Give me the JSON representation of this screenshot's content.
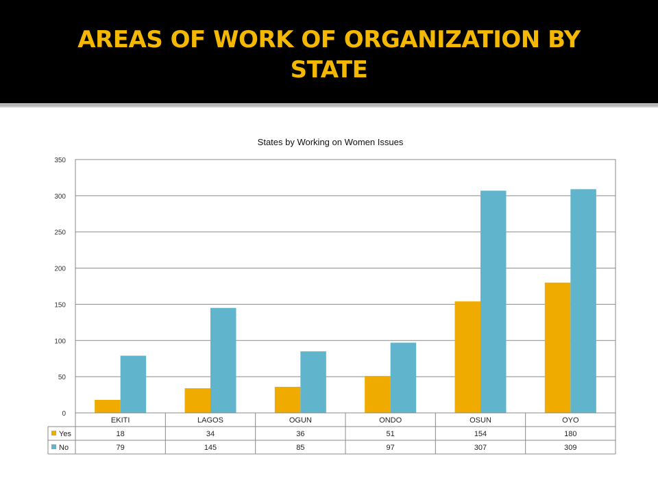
{
  "slide": {
    "title": "AREAS OF WORK OF ORGANIZATION BY STATE"
  },
  "chart_data": {
    "type": "bar",
    "title": "States by Working on Women Issues",
    "categories": [
      "EKITI",
      "LAGOS",
      "OGUN",
      "ONDO",
      "OSUN",
      "OYO"
    ],
    "series": [
      {
        "name": "Yes",
        "values": [
          18,
          34,
          36,
          51,
          154,
          180
        ],
        "color": "#f0ab00"
      },
      {
        "name": "No",
        "values": [
          79,
          145,
          85,
          97,
          307,
          309
        ],
        "color": "#60b5cc"
      }
    ],
    "ylim": [
      0,
      350
    ],
    "yticks": [
      0,
      50,
      100,
      150,
      200,
      250,
      300,
      350
    ],
    "grid": true,
    "data_table": true,
    "xlabel": "",
    "ylabel": ""
  }
}
